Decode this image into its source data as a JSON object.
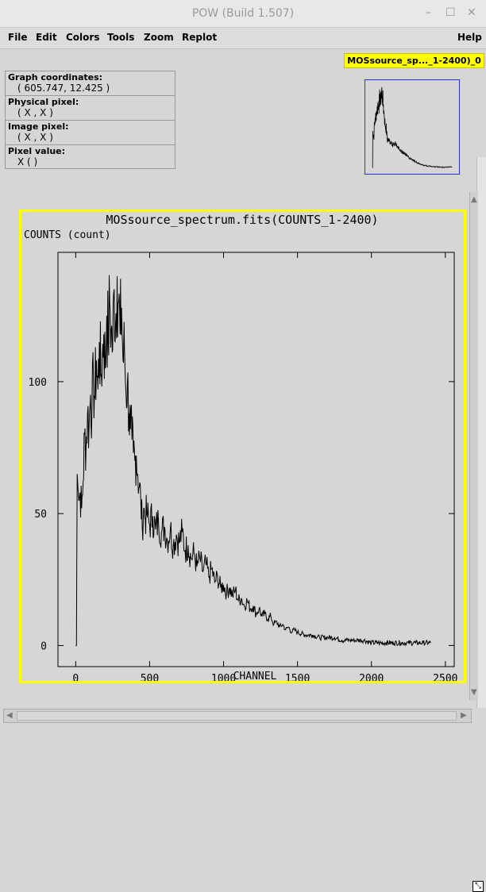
{
  "window": {
    "title": "POW (Build 1.507)",
    "controls": [
      "–",
      "☐",
      "✕"
    ]
  },
  "menubar": {
    "items": [
      "File",
      "Edit",
      "Colors",
      "Tools",
      "Zoom",
      "Replot"
    ],
    "help": "Help"
  },
  "graph_badge": "MOSsource_sp..._1-2400)_0",
  "info": {
    "graph_coordinates": {
      "label": "Graph coordinates:",
      "value": "( 605.747, 12.425 )"
    },
    "physical_pixel": {
      "label": "Physical pixel:",
      "value": "( X , X )"
    },
    "image_pixel": {
      "label": "Image pixel:",
      "value": "( X , X )"
    },
    "pixel_value": {
      "label": "Pixel value:",
      "value": "X ( )"
    }
  },
  "chart_data": {
    "type": "line",
    "title": "MOSsource_spectrum.fits(COUNTS_1-2400)",
    "xlabel": "CHANNEL",
    "ylabel": "COUNTS (count)",
    "xlim": [
      -120,
      2560
    ],
    "ylim": [
      -8,
      149
    ],
    "xticks": [
      0,
      500,
      1000,
      1500,
      2000,
      2500
    ],
    "yticks": [
      0,
      50,
      100
    ],
    "grid": false,
    "series": [
      {
        "x": [
          0,
          5,
          10,
          15,
          20,
          30,
          40,
          50,
          60,
          70,
          80,
          90,
          100,
          110,
          120,
          130,
          140,
          150,
          160,
          170,
          180,
          190,
          200,
          210,
          220,
          230,
          240,
          250,
          260,
          270,
          280,
          290,
          300,
          310,
          320,
          330,
          340,
          350,
          360,
          370,
          380,
          390,
          400,
          410,
          420,
          430,
          440,
          450,
          460,
          470,
          480,
          500,
          520,
          540,
          560,
          580,
          600,
          620,
          640,
          660,
          680,
          700,
          720,
          740,
          760,
          780,
          800,
          820,
          840,
          860,
          880,
          900,
          920,
          940,
          960,
          980,
          1000,
          1020,
          1040,
          1060,
          1080,
          1100,
          1120,
          1140,
          1160,
          1180,
          1200,
          1220,
          1240,
          1260,
          1280,
          1300,
          1320,
          1340,
          1360,
          1380,
          1400,
          1420,
          1440,
          1460,
          1480,
          1500,
          1550,
          1600,
          1650,
          1700,
          1750,
          1800,
          1850,
          1900,
          1950,
          2000,
          2050,
          2100,
          2150,
          2200,
          2250,
          2300,
          2350,
          2400
        ],
        "y": [
          0,
          0,
          65,
          60,
          55,
          58,
          52,
          62,
          80,
          75,
          88,
          82,
          95,
          90,
          100,
          94,
          108,
          97,
          115,
          102,
          110,
          118,
          105,
          125,
          115,
          130,
          120,
          112,
          135,
          122,
          140,
          130,
          118,
          128,
          108,
          112,
          96,
          100,
          88,
          82,
          78,
          73,
          70,
          72,
          65,
          60,
          55,
          45,
          52,
          48,
          50,
          46,
          49,
          44,
          47,
          43,
          45,
          40,
          44,
          38,
          42,
          39,
          43,
          36,
          38,
          33,
          35,
          30,
          33,
          28,
          31,
          26,
          29,
          24,
          26,
          22,
          23,
          20,
          22,
          19,
          21,
          17,
          18,
          15,
          17,
          14,
          15,
          12,
          14,
          11,
          12,
          10,
          11,
          8,
          9,
          7,
          8,
          6,
          7,
          5,
          6,
          5,
          4,
          4,
          3,
          3,
          3,
          2,
          2,
          2,
          2,
          1,
          1,
          1,
          1,
          1,
          1,
          1,
          1,
          1
        ]
      }
    ]
  }
}
